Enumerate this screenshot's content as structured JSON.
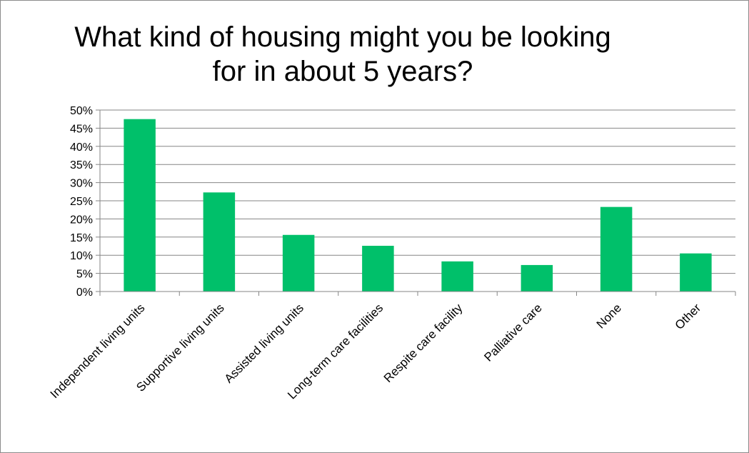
{
  "chart_data": {
    "type": "bar",
    "title": "What kind of housing might you be looking for in about 5 years?",
    "categories": [
      "Independent living units",
      "Supportive living units",
      "Assisted living units",
      "Long-term care facilities",
      "Respite care facility",
      "Palliative care",
      "None",
      "Other"
    ],
    "values": [
      47.5,
      27.3,
      15.6,
      12.6,
      8.3,
      7.3,
      23.3,
      10.5
    ],
    "value_format": "percent",
    "ylim": [
      0,
      50
    ],
    "yticks": [
      0,
      5,
      10,
      15,
      20,
      25,
      30,
      35,
      40,
      45,
      50
    ],
    "ytick_labels": [
      "0%",
      "5%",
      "10%",
      "15%",
      "20%",
      "25%",
      "30%",
      "35%",
      "40%",
      "45%",
      "50%"
    ],
    "xlabel": "",
    "ylabel": "",
    "grid": true,
    "legend": "none",
    "bar_color": "#00c06a",
    "grid_color": "#868686"
  }
}
